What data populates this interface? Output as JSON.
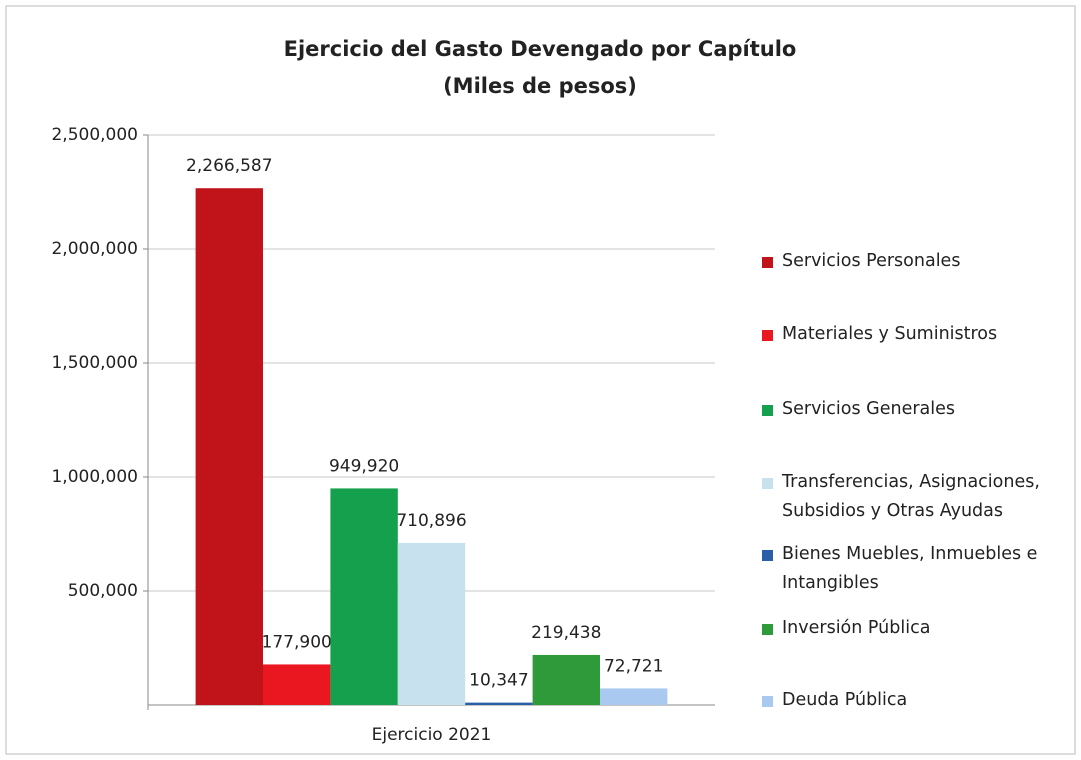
{
  "chart_data": {
    "type": "bar",
    "title": "Ejercicio del Gasto Devengado por Capítulo",
    "subtitle": "(Miles de pesos)",
    "categories": [
      "Ejercicio 2021"
    ],
    "series": [
      {
        "name": "Servicios Personales",
        "color": "#c0141a",
        "values": [
          2266587
        ],
        "value_labels": [
          "2,266,587"
        ]
      },
      {
        "name": "Materiales y Suministros",
        "color": "#ea1620",
        "values": [
          177900
        ],
        "value_labels": [
          "177,900"
        ]
      },
      {
        "name": "Servicios Generales",
        "color": "#14a04c",
        "values": [
          949920
        ],
        "value_labels": [
          "949,920"
        ]
      },
      {
        "name": "Transferencias, Asignaciones, Subsidios y Otras Ayudas",
        "color": "#c7e1ef",
        "values": [
          710896
        ],
        "value_labels": [
          "710,896"
        ]
      },
      {
        "name": "Bienes Muebles, Inmuebles e Intangibles",
        "color": "#2a5fa8",
        "values": [
          10347
        ],
        "value_labels": [
          "10,347"
        ]
      },
      {
        "name": "Inversión Pública",
        "color": "#2f9a3a",
        "values": [
          219438
        ],
        "value_labels": [
          "219,438"
        ]
      },
      {
        "name": "Deuda Pública",
        "color": "#a9c9f0",
        "values": [
          72721
        ],
        "value_labels": [
          "72,721"
        ]
      }
    ],
    "ylim": [
      0,
      2500000
    ],
    "yticks": [
      {
        "value": 500000,
        "label": "500,000"
      },
      {
        "value": 1000000,
        "label": "1,000,000"
      },
      {
        "value": 1500000,
        "label": "1,500,000"
      },
      {
        "value": 2000000,
        "label": "2,000,000"
      },
      {
        "value": 2500000,
        "label": "2,500,000"
      }
    ],
    "grid": true,
    "legend": "right"
  }
}
